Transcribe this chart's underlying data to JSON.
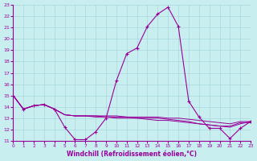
{
  "xlabel": "Windchill (Refroidissement éolien,°C)",
  "background_color": "#c8eef0",
  "grid_color": "#a8d8dc",
  "line_color": "#990099",
  "xlim": [
    0,
    23
  ],
  "ylim": [
    11,
    23
  ],
  "xticks": [
    0,
    1,
    2,
    3,
    4,
    5,
    6,
    7,
    8,
    9,
    10,
    11,
    12,
    13,
    14,
    15,
    16,
    17,
    18,
    19,
    20,
    21,
    22,
    23
  ],
  "yticks": [
    11,
    12,
    13,
    14,
    15,
    16,
    17,
    18,
    19,
    20,
    21,
    22,
    23
  ],
  "series": [
    [
      15.0,
      13.8,
      14.1,
      14.2,
      13.8,
      12.2,
      11.1,
      11.1,
      11.8,
      13.0,
      16.3,
      18.7,
      19.2,
      21.1,
      22.2,
      22.8,
      21.1,
      14.5,
      13.1,
      12.1,
      12.1,
      11.2,
      12.1,
      12.7
    ],
    [
      15.0,
      13.8,
      14.1,
      14.2,
      13.8,
      13.3,
      13.2,
      13.2,
      13.1,
      13.1,
      13.0,
      13.0,
      13.0,
      12.9,
      12.8,
      12.8,
      12.7,
      12.6,
      12.5,
      12.4,
      12.3,
      12.3,
      12.6,
      12.6
    ],
    [
      15.0,
      13.8,
      14.1,
      14.2,
      13.8,
      13.3,
      13.2,
      13.2,
      13.2,
      13.1,
      13.1,
      13.1,
      13.0,
      13.0,
      13.0,
      12.9,
      12.8,
      12.7,
      12.5,
      12.4,
      12.3,
      12.2,
      12.5,
      12.7
    ],
    [
      15.0,
      13.8,
      14.1,
      14.2,
      13.8,
      13.3,
      13.2,
      13.2,
      13.2,
      13.2,
      13.2,
      13.1,
      13.1,
      13.1,
      13.1,
      13.0,
      13.0,
      12.9,
      12.8,
      12.7,
      12.6,
      12.5,
      12.7,
      12.7
    ]
  ]
}
